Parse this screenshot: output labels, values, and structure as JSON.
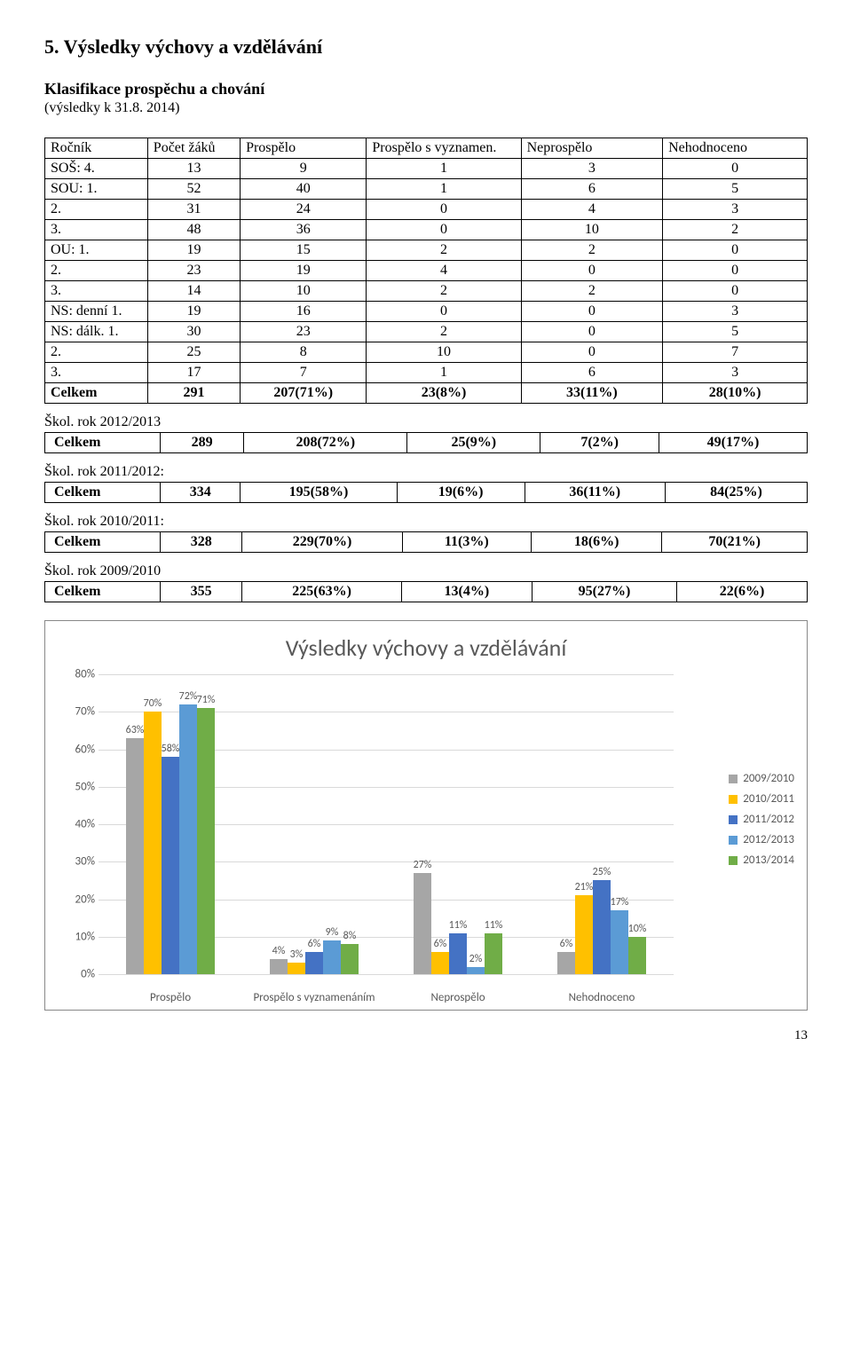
{
  "section_title": "5. Výsledky výchovy a vzdělávání",
  "subheading": "Klasifikace prospěchu a chování",
  "subnote": "(výsledky k 31.8. 2014)",
  "table": {
    "headers": [
      "Ročník",
      "Počet žáků",
      "Prospělo",
      "Prospělo s vyznamen.",
      "Neprospělo",
      "Nehodnoceno"
    ],
    "rows": [
      {
        "label": "SOŠ:   4.",
        "vals": [
          "13",
          "9",
          "1",
          "3",
          "0"
        ]
      },
      {
        "label": "SOU:   1.",
        "vals": [
          "52",
          "40",
          "1",
          "6",
          "5"
        ]
      },
      {
        "label": "2.",
        "vals": [
          "31",
          "24",
          "0",
          "4",
          "3"
        ]
      },
      {
        "label": "3.",
        "vals": [
          "48",
          "36",
          "0",
          "10",
          "2"
        ]
      },
      {
        "label": "OU:    1.",
        "vals": [
          "19",
          "15",
          "2",
          "2",
          "0"
        ]
      },
      {
        "label": "2.",
        "vals": [
          "23",
          "19",
          "4",
          "0",
          "0"
        ]
      },
      {
        "label": "3.",
        "vals": [
          "14",
          "10",
          "2",
          "2",
          "0"
        ]
      },
      {
        "label": "NS: denní   1.",
        "vals": [
          "19",
          "16",
          "0",
          "0",
          "3"
        ]
      },
      {
        "label": "NS: dálk.   1.",
        "vals": [
          "30",
          "23",
          "2",
          "0",
          "5"
        ]
      },
      {
        "label": "2.",
        "vals": [
          "25",
          "8",
          "10",
          "0",
          "7"
        ]
      },
      {
        "label": "3.",
        "vals": [
          "17",
          "7",
          "1",
          "6",
          "3"
        ]
      }
    ],
    "total_row": {
      "label": "Celkem",
      "vals": [
        "291",
        "207(71%)",
        "23(8%)",
        "33(11%)",
        "28(10%)"
      ]
    }
  },
  "years": [
    {
      "line": "Škol. rok 2012/2013",
      "label": "Celkem",
      "vals": [
        "289",
        "208(72%)",
        "25(9%)",
        "7(2%)",
        "49(17%)"
      ]
    },
    {
      "line": "Škol. rok 2011/2012:",
      "label": "Celkem",
      "vals": [
        "334",
        "195(58%)",
        "19(6%)",
        "36(11%)",
        "84(25%)"
      ]
    },
    {
      "line": "Škol. rok 2010/2011:",
      "label": "Celkem",
      "vals": [
        "328",
        "229(70%)",
        "11(3%)",
        "18(6%)",
        "70(21%)"
      ]
    },
    {
      "line": "Škol. rok 2009/2010",
      "label": "Celkem",
      "vals": [
        "355",
        "225(63%)",
        "13(4%)",
        "95(27%)",
        "22(6%)"
      ]
    }
  ],
  "chart": {
    "title": "Výsledky výchovy a vzdělávání",
    "ymax": 80,
    "ytick_step": 10,
    "categories": [
      "Prospělo",
      "Prospělo s vyznamenáním",
      "Neprospělo",
      "Nehodnoceno"
    ],
    "series": [
      {
        "name": "2009/2010",
        "color": "#a6a6a6",
        "values": [
          63,
          4,
          27,
          6
        ]
      },
      {
        "name": "2010/2011",
        "color": "#ffc000",
        "values": [
          70,
          3,
          6,
          21
        ]
      },
      {
        "name": "2011/2012",
        "color": "#4472c4",
        "values": [
          58,
          6,
          11,
          25
        ]
      },
      {
        "name": "2012/2013",
        "color": "#5b9bd5",
        "values": [
          72,
          9,
          2,
          17
        ]
      },
      {
        "name": "2013/2014",
        "color": "#70ad47",
        "values": [
          71,
          8,
          11,
          10
        ]
      }
    ],
    "legend_prefix": "■ "
  },
  "page_number": "13"
}
